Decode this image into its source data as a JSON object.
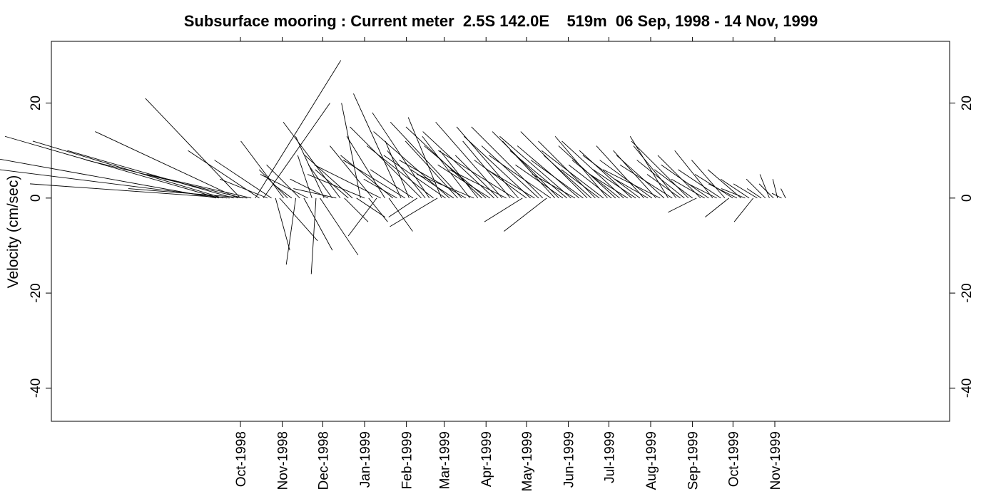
{
  "chart_data": {
    "type": "stick",
    "title": "Subsurface mooring : Current meter  2.5S 142.0E    519m  06 Sep, 1998 - 14 Nov, 1999",
    "ylabel": "Velocity (cm/sec)",
    "xlabel": "",
    "start_date": "1998-09-06",
    "end_date": "1999-11-14",
    "ylim": [
      -47,
      33
    ],
    "x_ticks": [
      {
        "label": "Oct-1998",
        "date": "1998-10-01"
      },
      {
        "label": "Nov-1998",
        "date": "1998-11-01"
      },
      {
        "label": "Dec-1998",
        "date": "1998-12-01"
      },
      {
        "label": "Jan-1999",
        "date": "1999-01-01"
      },
      {
        "label": "Feb-1999",
        "date": "1999-02-01"
      },
      {
        "label": "Mar-1999",
        "date": "1999-03-01"
      },
      {
        "label": "Apr-1999",
        "date": "1999-04-01"
      },
      {
        "label": "May-1999",
        "date": "1999-05-01"
      },
      {
        "label": "Jun-1999",
        "date": "1999-06-01"
      },
      {
        "label": "Jul-1999",
        "date": "1999-07-01"
      },
      {
        "label": "Aug-1999",
        "date": "1999-08-01"
      },
      {
        "label": "Sep-1999",
        "date": "1999-09-01"
      },
      {
        "label": "Oct-1999",
        "date": "1999-10-01"
      },
      {
        "label": "Nov-1999",
        "date": "1999-11-01"
      }
    ],
    "y_ticks": [
      {
        "value": 20,
        "label": "20"
      },
      {
        "value": 0,
        "label": "0"
      },
      {
        "value": -20,
        "label": "-20"
      },
      {
        "value": -40,
        "label": "-40"
      }
    ],
    "series": [
      {
        "points": [
          {
            "date": "1998-09-13",
            "u": -50,
            "v": 9
          },
          {
            "date": "1998-09-15",
            "u": -45,
            "v": 13
          },
          {
            "date": "1998-09-18",
            "u": -40,
            "v": 12
          },
          {
            "date": "1998-09-21",
            "u": -48,
            "v": 6
          },
          {
            "date": "1998-09-23",
            "u": -42,
            "v": 3
          },
          {
            "date": "1998-09-26",
            "u": -35,
            "v": 10
          },
          {
            "date": "1998-09-29",
            "u": -30,
            "v": 14
          },
          {
            "date": "1998-10-01",
            "u": -20,
            "v": 21
          },
          {
            "date": "1998-10-03",
            "u": -33,
            "v": 8
          },
          {
            "date": "1998-10-06",
            "u": -25,
            "v": 2
          },
          {
            "date": "1998-10-09",
            "u": -22,
            "v": 5
          },
          {
            "date": "1998-10-12",
            "u": 18,
            "v": 29
          },
          {
            "date": "1998-10-15",
            "u": -15,
            "v": 10
          },
          {
            "date": "1998-10-18",
            "u": 14,
            "v": 20
          },
          {
            "date": "1998-10-21",
            "u": -10,
            "v": 4
          },
          {
            "date": "1998-10-24",
            "u": -12,
            "v": 8
          },
          {
            "date": "1998-10-27",
            "u": 3,
            "v": -11
          },
          {
            "date": "1998-10-30",
            "u": 8,
            "v": -9
          },
          {
            "date": "1998-11-02",
            "u": -9,
            "v": 12
          },
          {
            "date": "1998-11-05",
            "u": -6,
            "v": 6
          },
          {
            "date": "1998-11-08",
            "u": -4,
            "v": 3
          },
          {
            "date": "1998-11-11",
            "u": -2,
            "v": -14
          },
          {
            "date": "1998-11-14",
            "u": -7,
            "v": 7
          },
          {
            "date": "1998-11-17",
            "u": 6,
            "v": -11
          },
          {
            "date": "1998-11-20",
            "u": -10,
            "v": 5
          },
          {
            "date": "1998-11-23",
            "u": -3,
            "v": 9
          },
          {
            "date": "1998-11-26",
            "u": -1,
            "v": -16
          },
          {
            "date": "1998-11-29",
            "u": 8,
            "v": -12
          },
          {
            "date": "1998-12-02",
            "u": -6,
            "v": 13
          },
          {
            "date": "1998-12-05",
            "u": -8,
            "v": 4
          },
          {
            "date": "1998-12-08",
            "u": -5,
            "v": 7
          },
          {
            "date": "1998-12-11",
            "u": -9,
            "v": 2
          },
          {
            "date": "1998-12-14",
            "u": -12,
            "v": 16
          },
          {
            "date": "1998-12-17",
            "u": 5,
            "v": -5
          },
          {
            "date": "1998-12-20",
            "u": -7,
            "v": 6
          },
          {
            "date": "1998-12-23",
            "u": -10,
            "v": 9
          },
          {
            "date": "1998-12-26",
            "u": 6,
            "v": -4
          },
          {
            "date": "1998-12-29",
            "u": -4,
            "v": 20
          },
          {
            "date": "1999-01-01",
            "u": -12,
            "v": 5
          },
          {
            "date": "1999-01-04",
            "u": 4,
            "v": -5
          },
          {
            "date": "1999-01-07",
            "u": -9,
            "v": 11
          },
          {
            "date": "1999-01-10",
            "u": -6,
            "v": -8
          },
          {
            "date": "1999-01-13",
            "u": -14,
            "v": 7
          },
          {
            "date": "1999-01-16",
            "u": -8,
            "v": 13
          },
          {
            "date": "1999-01-19",
            "u": 5,
            "v": -7
          },
          {
            "date": "1999-01-22",
            "u": -11,
            "v": 9
          },
          {
            "date": "1999-01-25",
            "u": -7,
            "v": 4
          },
          {
            "date": "1999-01-28",
            "u": -10,
            "v": 22
          },
          {
            "date": "1999-01-31",
            "u": -13,
            "v": 8
          },
          {
            "date": "1999-02-03",
            "u": -5,
            "v": 12
          },
          {
            "date": "1999-02-06",
            "u": -9,
            "v": 6
          },
          {
            "date": "1999-02-09",
            "u": -6,
            "v": -4
          },
          {
            "date": "1999-02-12",
            "u": -15,
            "v": 15
          },
          {
            "date": "1999-02-15",
            "u": -8,
            "v": 10
          },
          {
            "date": "1999-02-18",
            "u": -12,
            "v": 18
          },
          {
            "date": "1999-02-21",
            "u": -14,
            "v": 11
          },
          {
            "date": "1999-02-24",
            "u": -10,
            "v": -6
          },
          {
            "date": "1999-02-27",
            "u": -7,
            "v": 17
          },
          {
            "date": "1999-03-02",
            "u": -13,
            "v": 9
          },
          {
            "date": "1999-03-05",
            "u": -16,
            "v": 14
          },
          {
            "date": "1999-03-08",
            "u": -9,
            "v": 6
          },
          {
            "date": "1999-03-11",
            "u": -11,
            "v": 12
          },
          {
            "date": "1999-03-14",
            "u": -15,
            "v": 16
          },
          {
            "date": "1999-03-17",
            "u": -14,
            "v": 8
          },
          {
            "date": "1999-03-20",
            "u": -10,
            "v": 13
          },
          {
            "date": "1999-03-23",
            "u": -12,
            "v": 5
          },
          {
            "date": "1999-03-26",
            "u": -8,
            "v": 10
          },
          {
            "date": "1999-03-29",
            "u": -16,
            "v": 15
          },
          {
            "date": "1999-04-01",
            "u": -13,
            "v": 11
          },
          {
            "date": "1999-04-04",
            "u": -11,
            "v": 7
          },
          {
            "date": "1999-04-07",
            "u": -15,
            "v": 14
          },
          {
            "date": "1999-04-10",
            "u": -9,
            "v": 9
          },
          {
            "date": "1999-04-13",
            "u": -14,
            "v": 16
          },
          {
            "date": "1999-04-16",
            "u": -12,
            "v": 6
          },
          {
            "date": "1999-04-19",
            "u": -10,
            "v": 12
          },
          {
            "date": "1999-04-22",
            "u": -16,
            "v": 10
          },
          {
            "date": "1999-04-25",
            "u": -13,
            "v": 15
          },
          {
            "date": "1999-04-28",
            "u": -8,
            "v": -5
          },
          {
            "date": "1999-05-01",
            "u": -11,
            "v": 8
          },
          {
            "date": "1999-05-04",
            "u": -14,
            "v": 13
          },
          {
            "date": "1999-05-07",
            "u": -10,
            "v": 6
          },
          {
            "date": "1999-05-10",
            "u": -12,
            "v": 11
          },
          {
            "date": "1999-05-13",
            "u": -15,
            "v": 15
          },
          {
            "date": "1999-05-16",
            "u": -9,
            "v": -7
          },
          {
            "date": "1999-05-19",
            "u": -13,
            "v": 9
          },
          {
            "date": "1999-05-22",
            "u": -11,
            "v": 12
          },
          {
            "date": "1999-05-25",
            "u": -14,
            "v": 14
          },
          {
            "date": "1999-05-28",
            "u": -10,
            "v": 7
          },
          {
            "date": "1999-05-31",
            "u": -12,
            "v": 10
          },
          {
            "date": "1999-06-03",
            "u": -15,
            "v": 13
          },
          {
            "date": "1999-06-06",
            "u": -9,
            "v": 5
          },
          {
            "date": "1999-06-09",
            "u": -13,
            "v": 11
          },
          {
            "date": "1999-06-12",
            "u": -11,
            "v": 8
          },
          {
            "date": "1999-06-15",
            "u": -14,
            "v": 14
          },
          {
            "date": "1999-06-18",
            "u": -10,
            "v": 9
          },
          {
            "date": "1999-06-21",
            "u": -12,
            "v": 12
          },
          {
            "date": "1999-06-24",
            "u": -8,
            "v": 6
          },
          {
            "date": "1999-06-27",
            "u": -13,
            "v": 10
          },
          {
            "date": "1999-06-30",
            "u": -11,
            "v": 13
          },
          {
            "date": "1999-07-03",
            "u": -9,
            "v": 7
          },
          {
            "date": "1999-07-06",
            "u": -12,
            "v": 11
          },
          {
            "date": "1999-07-09",
            "u": -10,
            "v": 8
          },
          {
            "date": "1999-07-12",
            "u": -13,
            "v": 12
          },
          {
            "date": "1999-07-15",
            "u": -8,
            "v": 5
          },
          {
            "date": "1999-07-18",
            "u": -11,
            "v": 10
          },
          {
            "date": "1999-07-21",
            "u": -9,
            "v": 6
          },
          {
            "date": "1999-07-24",
            "u": -12,
            "v": 9
          },
          {
            "date": "1999-07-27",
            "u": -10,
            "v": 11
          },
          {
            "date": "1999-07-30",
            "u": -7,
            "v": 4
          },
          {
            "date": "1999-08-02",
            "u": -11,
            "v": 8
          },
          {
            "date": "1999-08-05",
            "u": -9,
            "v": 10
          },
          {
            "date": "1999-08-08",
            "u": -12,
            "v": 6
          },
          {
            "date": "1999-08-11",
            "u": -10,
            "v": 9
          },
          {
            "date": "1999-08-14",
            "u": -8,
            "v": 13
          },
          {
            "date": "1999-08-17",
            "u": -11,
            "v": 7
          },
          {
            "date": "1999-08-20",
            "u": -9,
            "v": 11
          },
          {
            "date": "1999-08-23",
            "u": -7,
            "v": 5
          },
          {
            "date": "1999-08-26",
            "u": -10,
            "v": 8
          },
          {
            "date": "1999-08-29",
            "u": -12,
            "v": 12
          },
          {
            "date": "1999-09-01",
            "u": -8,
            "v": 6
          },
          {
            "date": "1999-09-04",
            "u": -6,
            "v": -3
          },
          {
            "date": "1999-09-07",
            "u": -9,
            "v": 9
          },
          {
            "date": "1999-09-10",
            "u": -7,
            "v": 4
          },
          {
            "date": "1999-09-13",
            "u": -10,
            "v": 7
          },
          {
            "date": "1999-09-16",
            "u": -8,
            "v": 10
          },
          {
            "date": "1999-09-19",
            "u": -6,
            "v": 3
          },
          {
            "date": "1999-09-22",
            "u": -9,
            "v": 6
          },
          {
            "date": "1999-09-25",
            "u": -7,
            "v": 8
          },
          {
            "date": "1999-09-28",
            "u": -5,
            "v": -4
          },
          {
            "date": "1999-10-01",
            "u": -8,
            "v": 5
          },
          {
            "date": "1999-10-04",
            "u": -6,
            "v": 3
          },
          {
            "date": "1999-10-07",
            "u": -7,
            "v": 6
          },
          {
            "date": "1999-10-10",
            "u": -5,
            "v": 2
          },
          {
            "date": "1999-10-13",
            "u": -6,
            "v": 4
          },
          {
            "date": "1999-10-16",
            "u": -4,
            "v": -5
          },
          {
            "date": "1999-10-19",
            "u": -5,
            "v": 3
          },
          {
            "date": "1999-10-22",
            "u": -3,
            "v": 2
          },
          {
            "date": "1999-10-25",
            "u": -4,
            "v": 4
          },
          {
            "date": "1999-10-28",
            "u": -2,
            "v": 5
          },
          {
            "date": "1999-10-31",
            "u": -3,
            "v": 3
          },
          {
            "date": "1999-11-03",
            "u": -1,
            "v": 4
          },
          {
            "date": "1999-11-06",
            "u": -2,
            "v": 1
          },
          {
            "date": "1999-11-09",
            "u": -1,
            "v": 2
          }
        ]
      }
    ]
  }
}
